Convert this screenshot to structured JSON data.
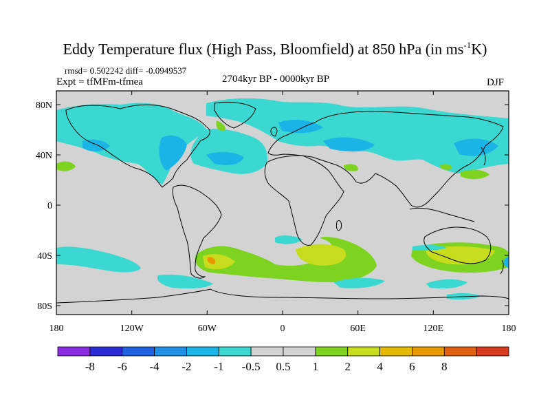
{
  "title": {
    "main": "Eddy Temperature flux (High Pass, Bloomfield) at 850 hPa (in ms",
    "sup": "-1",
    "tail": "K)"
  },
  "stats": "rmsd= 0.502242 diff= -0.0949537",
  "expt": "Expt = tfMFm-tfmea",
  "period": "2704kyr BP - 0000kyr BP",
  "season": "DJF",
  "axes": {
    "y_ticks": [
      "80N",
      "40N",
      "0",
      "40S",
      "80S"
    ],
    "x_ticks": [
      "180",
      "120W",
      "60W",
      "0",
      "60E",
      "120E",
      "180"
    ]
  },
  "colorbar": {
    "colors": [
      "#8a2be2",
      "#2b2bd4",
      "#1f5fe0",
      "#1e90e6",
      "#1ab4e6",
      "#3ad8d0",
      "#d3d3d3",
      "#d3d3d3",
      "#7ed321",
      "#c8dc1e",
      "#e6b800",
      "#e69a00",
      "#e06010",
      "#d83a20"
    ],
    "labels": [
      "-8",
      "-6",
      "-4",
      "-2",
      "-1",
      "-0.5",
      "0.5",
      "1",
      "2",
      "4",
      "6",
      "8"
    ]
  },
  "colors": {
    "ocean_land_background": "#d3d3d3",
    "negative_light": "#3ad8d0",
    "negative_mid": "#1ab4e6",
    "positive_light": "#7ed321",
    "positive_mid": "#c8dc1e",
    "positive_high": "#e69a00"
  }
}
